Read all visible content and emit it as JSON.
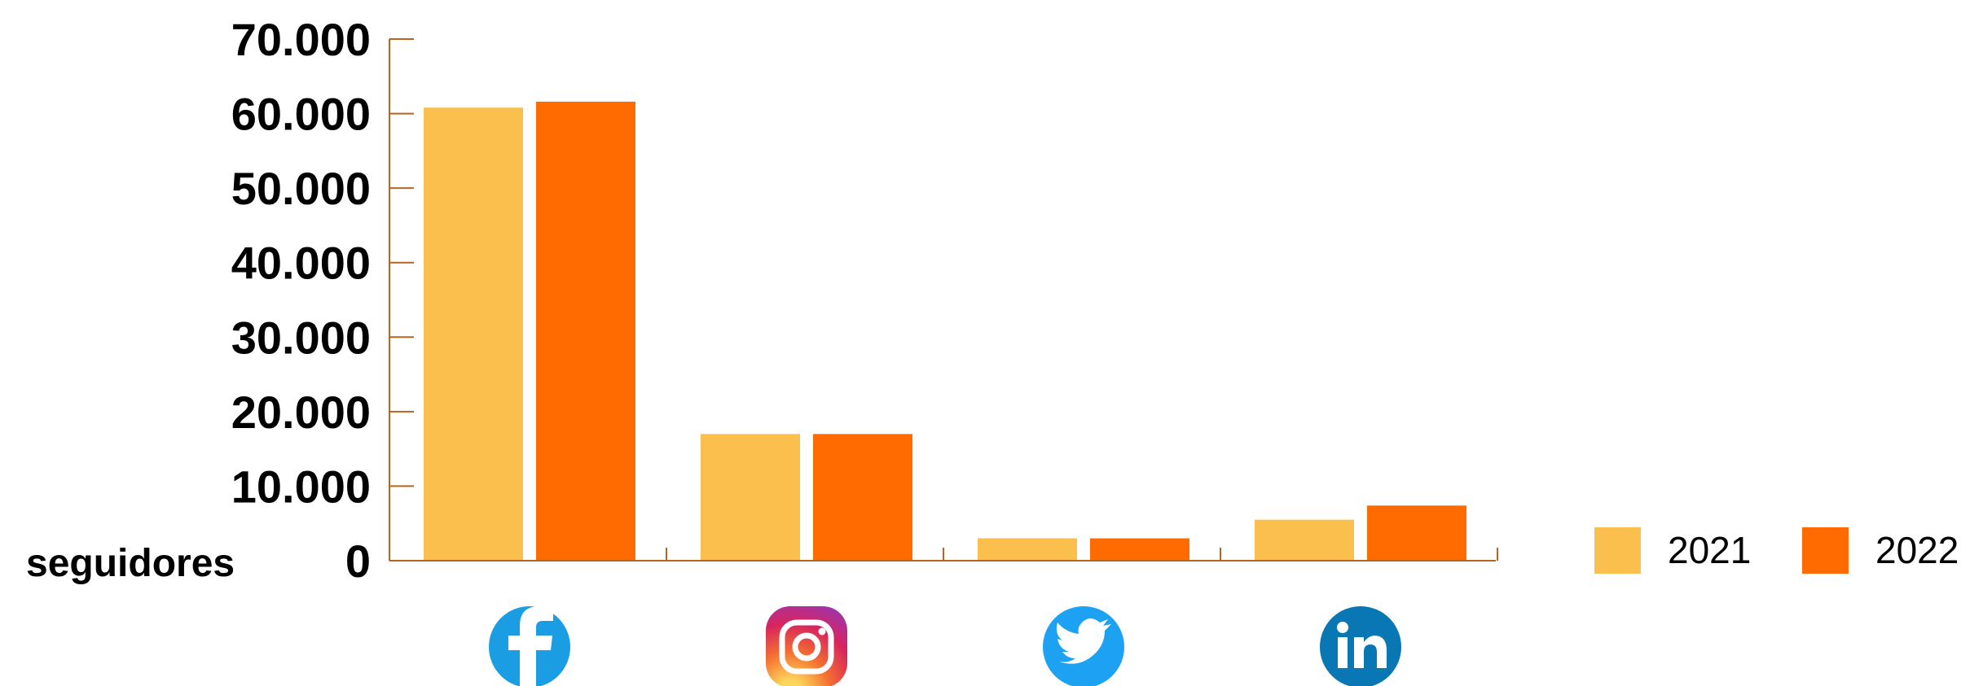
{
  "chart_data": {
    "type": "bar",
    "categories": [
      "facebook",
      "instagram",
      "twitter",
      "linkedin"
    ],
    "category_icons": [
      "facebook-icon",
      "instagram-icon",
      "twitter-icon",
      "linkedin-icon"
    ],
    "series": [
      {
        "name": "2021",
        "color": "#FBBF4E",
        "values": [
          60800,
          17000,
          3000,
          5500
        ]
      },
      {
        "name": "2022",
        "color": "#FF6B00",
        "values": [
          61600,
          17000,
          3000,
          7400
        ]
      }
    ],
    "ylim": [
      0,
      70000
    ],
    "yticks": [
      0,
      10000,
      20000,
      30000,
      40000,
      50000,
      60000,
      70000
    ],
    "ytick_labels": [
      "0",
      "10.000",
      "20.000",
      "30.000",
      "40.000",
      "50.000",
      "60.000",
      "70.000"
    ],
    "ylabel": "seguidores",
    "axis_color": "#B5651D",
    "legend_position": "right",
    "grid": false
  }
}
